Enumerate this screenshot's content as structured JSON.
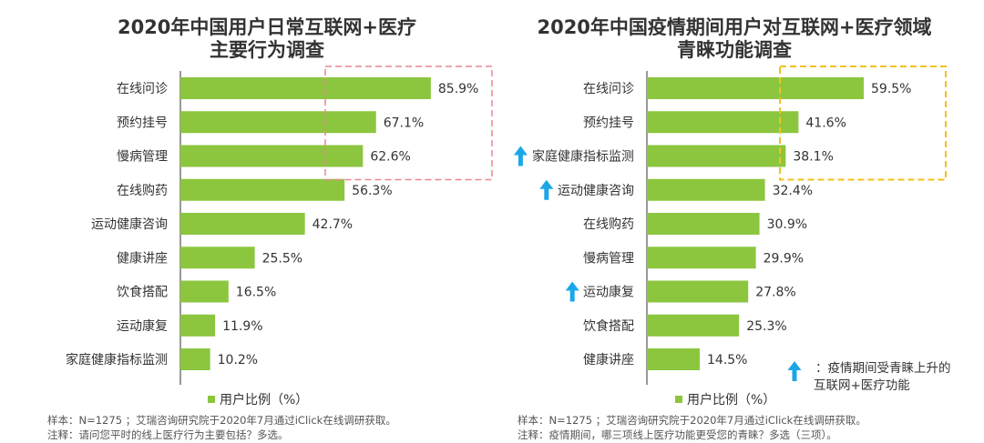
{
  "colors": {
    "bar": "#8cc63f",
    "axis": "#555555",
    "highlight_left": "#e8878f",
    "highlight_right": "#f2c21b",
    "arrow": "#1aa7e8"
  },
  "legend_label": "用户比例（%）",
  "chart_data": [
    {
      "type": "bar",
      "title": "2020年中国用户日常互联网+医疗主要行为调查",
      "title_lines": [
        "2020年中国用户日常互联网+医疗",
        "主要行为调查"
      ],
      "categories": [
        "在线问诊",
        "预约挂号",
        "慢病管理",
        "在线购药",
        "运动健康咨询",
        "健康讲座",
        "饮食搭配",
        "运动康复",
        "家庭健康指标监测"
      ],
      "values": [
        85.9,
        67.1,
        62.6,
        56.3,
        42.7,
        25.5,
        16.5,
        11.9,
        10.2
      ],
      "value_labels": [
        "85.9%",
        "67.1%",
        "62.6%",
        "56.3%",
        "42.7%",
        "25.5%",
        "16.5%",
        "11.9%",
        "10.2%"
      ],
      "series": [
        {
          "name": "用户比例（%）",
          "values": [
            85.9,
            67.1,
            62.6,
            56.3,
            42.7,
            25.5,
            16.5,
            11.9,
            10.2
          ]
        }
      ],
      "orientation": "horizontal",
      "xlim": [
        0,
        100
      ],
      "highlighted": [
        "在线问诊",
        "预约挂号",
        "慢病管理"
      ],
      "rising": [],
      "notes": [
        "样本：N=1275 ；艾瑞咨询研究院于2020年7月通过iClick在线调研获取。",
        "注释：请问您平时的线上医疗行为主要包括？多选。"
      ]
    },
    {
      "type": "bar",
      "title": "2020年中国疫情期间用户对互联网+医疗领域青睐功能调查",
      "title_lines": [
        "2020年中国疫情期间用户对互联网+医疗领域",
        "青睐功能调查"
      ],
      "categories": [
        "在线问诊",
        "预约挂号",
        "家庭健康指标监测",
        "运动健康咨询",
        "在线购药",
        "慢病管理",
        "运动康复",
        "饮食搭配",
        "健康讲座"
      ],
      "values": [
        59.5,
        41.6,
        38.1,
        32.4,
        30.9,
        29.9,
        27.8,
        25.3,
        14.5
      ],
      "value_labels": [
        "59.5%",
        "41.6%",
        "38.1%",
        "32.4%",
        "30.9%",
        "29.9%",
        "27.8%",
        "25.3%",
        "14.5%"
      ],
      "series": [
        {
          "name": "用户比例（%）",
          "values": [
            59.5,
            41.6,
            38.1,
            32.4,
            30.9,
            29.9,
            27.8,
            25.3,
            14.5
          ]
        }
      ],
      "orientation": "horizontal",
      "xlim": [
        0,
        100
      ],
      "highlighted": [
        "在线问诊",
        "预约挂号",
        "家庭健康指标监测"
      ],
      "rising": [
        "家庭健康指标监测",
        "运动健康咨询",
        "运动康复"
      ],
      "annotation_lines": [
        "：疫情期间受青睐上升的",
        "互联网+医疗功能"
      ],
      "notes": [
        "样本：N=1275 ；艾瑞咨询研究院于2020年7月通过iClick在线调研获取。",
        "注释：疫情期间，哪三项线上医疗功能更受您的青睐？多选（三项）。"
      ]
    }
  ]
}
